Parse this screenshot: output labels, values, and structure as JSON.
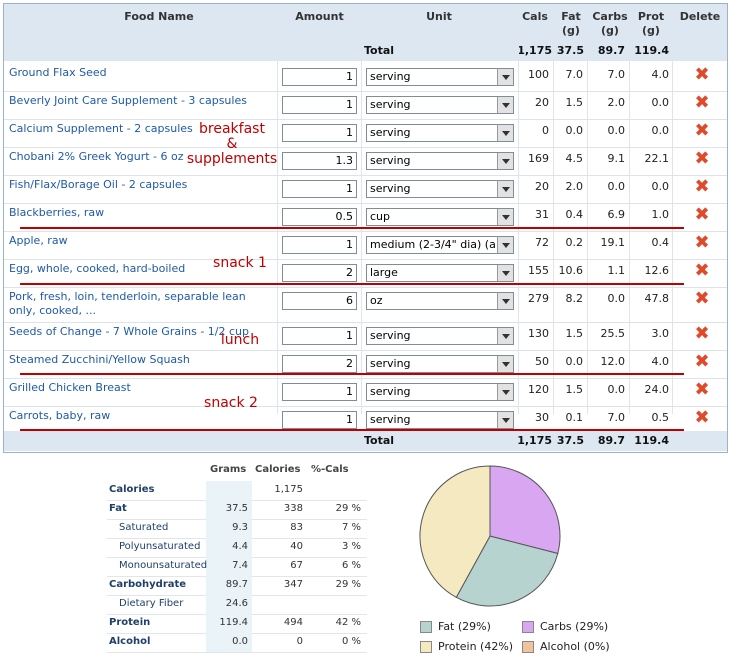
{
  "colors": {
    "header_bg": "#dce7f2",
    "link": "#1f5aa8",
    "delete": "#e04a2a",
    "annotation": "#c00000"
  },
  "headers": {
    "food_name": "Food Name",
    "amount": "Amount",
    "unit": "Unit",
    "cals": "Cals",
    "fat": "Fat",
    "fat_unit": "(g)",
    "carbs": "Carbs",
    "carbs_unit": "(g)",
    "prot": "Prot",
    "prot_unit": "(g)",
    "delete": "Delete"
  },
  "totals": {
    "label": "Total",
    "cals": "1,175",
    "fat": "37.5",
    "carbs": "89.7",
    "prot": "119.4"
  },
  "foods": [
    {
      "name": "Ground Flax Seed",
      "amount": "1",
      "unit": "serving",
      "cals": "100",
      "fat": "7.0",
      "carbs": "7.0",
      "prot": "4.0"
    },
    {
      "name": "Beverly Joint Care Supplement - 3 capsules",
      "amount": "1",
      "unit": "serving",
      "cals": "20",
      "fat": "1.5",
      "carbs": "2.0",
      "prot": "0.0"
    },
    {
      "name": "Calcium Supplement - 2 capsules",
      "amount": "1",
      "unit": "serving",
      "cals": "0",
      "fat": "0.0",
      "carbs": "0.0",
      "prot": "0.0"
    },
    {
      "name": "Chobani 2% Greek Yogurt - 6 oz",
      "amount": "1.3",
      "unit": "serving",
      "cals": "169",
      "fat": "4.5",
      "carbs": "9.1",
      "prot": "22.1"
    },
    {
      "name": "Fish/Flax/Borage Oil - 2 capsules",
      "amount": "1",
      "unit": "serving",
      "cals": "20",
      "fat": "2.0",
      "carbs": "0.0",
      "prot": "0.0"
    },
    {
      "name": "Blackberries, raw",
      "amount": "0.5",
      "unit": "cup",
      "cals": "31",
      "fat": "0.4",
      "carbs": "6.9",
      "prot": "1.0"
    },
    {
      "name": "Apple, raw",
      "amount": "1",
      "unit": "medium (2-3/4\" dia) (a",
      "cals": "72",
      "fat": "0.2",
      "carbs": "19.1",
      "prot": "0.4"
    },
    {
      "name": "Egg, whole, cooked, hard-boiled",
      "amount": "2",
      "unit": "large",
      "cals": "155",
      "fat": "10.6",
      "carbs": "1.1",
      "prot": "12.6"
    },
    {
      "name": "Pork, fresh, loin, tenderloin, separable lean only, cooked, ...",
      "amount": "6",
      "unit": "oz",
      "cals": "279",
      "fat": "8.2",
      "carbs": "0.0",
      "prot": "47.8"
    },
    {
      "name": "Seeds of Change - 7 Whole Grains - 1/2 cup",
      "amount": "1",
      "unit": "serving",
      "cals": "130",
      "fat": "1.5",
      "carbs": "25.5",
      "prot": "3.0"
    },
    {
      "name": "Steamed Zucchini/Yellow Squash",
      "amount": "2",
      "unit": "serving",
      "cals": "50",
      "fat": "0.0",
      "carbs": "12.0",
      "prot": "4.0"
    },
    {
      "name": "Grilled Chicken Breast",
      "amount": "1",
      "unit": "serving",
      "cals": "120",
      "fat": "1.5",
      "carbs": "0.0",
      "prot": "24.0"
    },
    {
      "name": "Carrots, baby, raw",
      "amount": "1",
      "unit": "serving",
      "cals": "30",
      "fat": "0.1",
      "carbs": "7.0",
      "prot": "0.5"
    }
  ],
  "annotations": {
    "breakfast": "breakfast",
    "amp": "&",
    "supplements": "supplements",
    "snack1": "snack 1",
    "lunch": "lunch",
    "snack2": "snack 2"
  },
  "nutrition": {
    "headers": {
      "grams": "Grams",
      "calories": "Calories",
      "pct": "%-Cals"
    },
    "rows": [
      {
        "label": "Calories",
        "grams": "",
        "calories": "1,175",
        "pct": "",
        "bold": true
      },
      {
        "label": "Fat",
        "grams": "37.5",
        "calories": "338",
        "pct": "29 %",
        "bold": true
      },
      {
        "label": "Saturated",
        "grams": "9.3",
        "calories": "83",
        "pct": "7 %",
        "bold": false
      },
      {
        "label": "Polyunsaturated",
        "grams": "4.4",
        "calories": "40",
        "pct": "3 %",
        "bold": false
      },
      {
        "label": "Monounsaturated",
        "grams": "7.4",
        "calories": "67",
        "pct": "6 %",
        "bold": false
      },
      {
        "label": "Carbohydrate",
        "grams": "89.7",
        "calories": "347",
        "pct": "29 %",
        "bold": true
      },
      {
        "label": "Dietary Fiber",
        "grams": "24.6",
        "calories": "",
        "pct": "",
        "bold": false
      },
      {
        "label": "Protein",
        "grams": "119.4",
        "calories": "494",
        "pct": "42 %",
        "bold": true
      },
      {
        "label": "Alcohol",
        "grams": "0.0",
        "calories": "0",
        "pct": "0 %",
        "bold": true
      }
    ]
  },
  "chart_data": {
    "type": "pie",
    "title": "",
    "series": [
      {
        "name": "Fat (29%)",
        "value": 29,
        "color": "#b7d3d0"
      },
      {
        "name": "Carbs (29%)",
        "value": 29,
        "color": "#d9a6f2"
      },
      {
        "name": "Protein (42%)",
        "value": 42,
        "color": "#f4e9c0"
      },
      {
        "name": "Alcohol (0%)",
        "value": 0,
        "color": "#f0c49a"
      }
    ],
    "legend_position": "bottom"
  }
}
